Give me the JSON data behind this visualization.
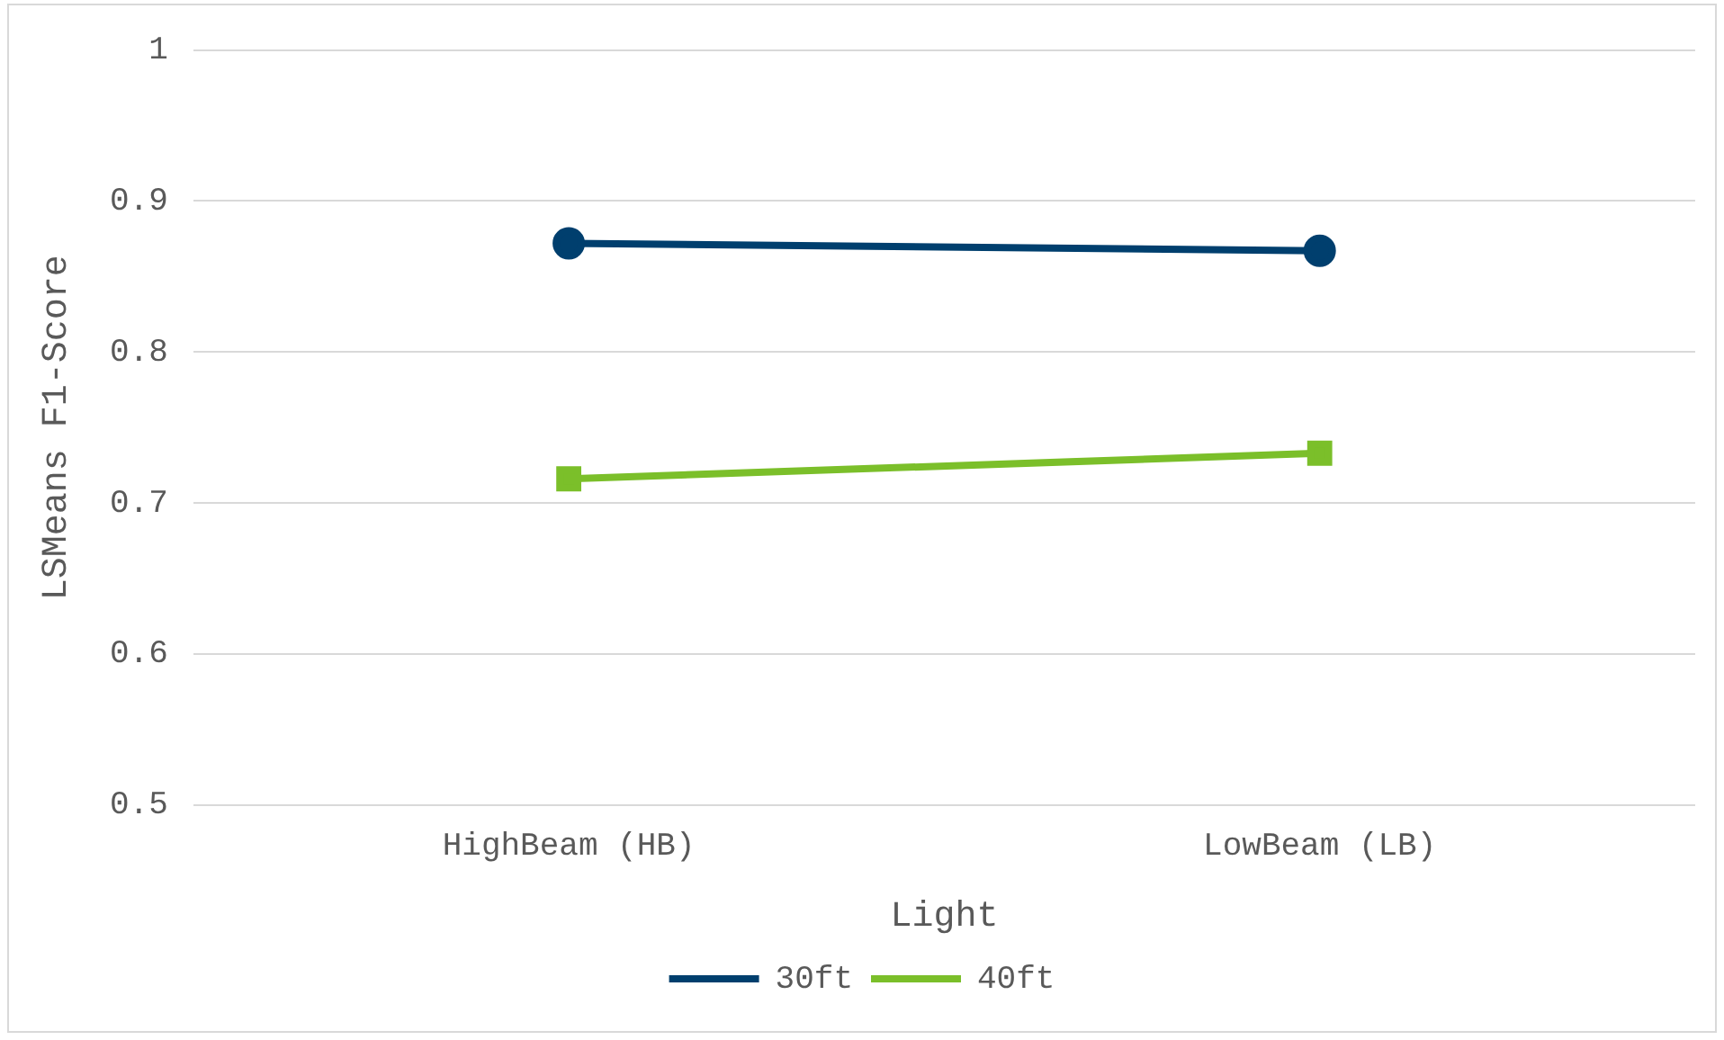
{
  "chart_data": {
    "type": "line",
    "xlabel": "Light",
    "ylabel": "LSMeans F1-Score",
    "categories": [
      "HighBeam (HB)",
      "LowBeam (LB)"
    ],
    "series": [
      {
        "name": "30ft",
        "color": "#003f6e",
        "values": [
          0.872,
          0.867
        ],
        "marker": "circle"
      },
      {
        "name": "40ft",
        "color": "#7bbf2a",
        "values": [
          0.716,
          0.733
        ],
        "marker": "square"
      }
    ],
    "ylim": [
      0.5,
      1
    ],
    "yticks": [
      {
        "value": 0.5,
        "label": "0.5"
      },
      {
        "value": 0.6,
        "label": "0.6"
      },
      {
        "value": 0.7,
        "label": "0.7"
      },
      {
        "value": 0.8,
        "label": "0.8"
      },
      {
        "value": 0.9,
        "label": "0.9"
      },
      {
        "value": 1,
        "label": "1"
      }
    ],
    "grid": "y",
    "legend": "bottom",
    "line_style": "solid"
  }
}
